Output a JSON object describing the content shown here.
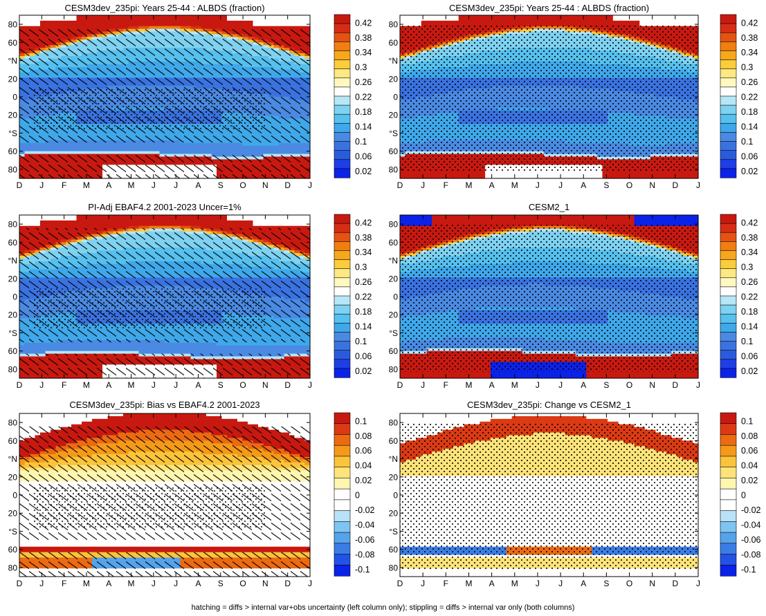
{
  "figure": {
    "footer": "hatching = diffs > internal var+obs uncertainty (left column only); stippling = diffs > internal var only (both columns)"
  },
  "colors": {
    "sequential": [
      "#0b22e8",
      "#1e3ee6",
      "#2a5bdf",
      "#3a72e0",
      "#4a8ae3",
      "#3fa8ea",
      "#56c0ee",
      "#7fd2f1",
      "#b7e6f6",
      "#ffffff",
      "#fff8c0",
      "#fde882",
      "#fbcc3c",
      "#f7a71a",
      "#f07e10",
      "#e55212",
      "#d62d15",
      "#c81910"
    ],
    "diverging": [
      "#0b22e8",
      "#2352e6",
      "#3b7de6",
      "#55a3ea",
      "#7ec4f0",
      "#b8e2f7",
      "#ffffff",
      "#ffffff",
      "#fff7b0",
      "#fde47a",
      "#fbc43a",
      "#f59a18",
      "#ec6a12",
      "#dc3a14",
      "#c81910"
    ]
  },
  "chart_data": [
    {
      "type": "heatmap",
      "title": "CESM3dev_235pi: Years 25-44 : ALBDS (fraction)",
      "x_ticks": [
        "D",
        "J",
        "F",
        "M",
        "A",
        "M",
        "J",
        "J",
        "A",
        "S",
        "O",
        "N",
        "D",
        "J"
      ],
      "y_ticks": [
        "80",
        "60",
        "°N",
        "20",
        "0",
        "20",
        "°S",
        "60",
        "80"
      ],
      "ylim": [
        -90,
        90
      ],
      "colorbar_labels": [
        "0.42",
        "0.38",
        "0.34",
        "0.3",
        "0.26",
        "0.22",
        "0.18",
        "0.14",
        "0.1",
        "0.06",
        "0.02"
      ],
      "colorbar_range": [
        0,
        0.44
      ],
      "overlay": "hatching + stippling",
      "fields": {
        "north_polar_max": 0.44,
        "north_midlat_edge": 0.3,
        "tropical_min": 0.08,
        "subtropical_band": 0.11,
        "south_edge_latitude": -62,
        "south_polar_max": 0.44,
        "missing_polar_night": "white"
      }
    },
    {
      "type": "heatmap",
      "title": "CESM3dev_235pi: Years 25-44 : ALBDS (fraction)",
      "x_ticks": [
        "D",
        "J",
        "F",
        "M",
        "A",
        "M",
        "J",
        "J",
        "A",
        "S",
        "O",
        "N",
        "D",
        "J"
      ],
      "y_ticks": [
        "80",
        "60",
        "°N",
        "20",
        "0",
        "20",
        "°S",
        "60",
        "80"
      ],
      "ylim": [
        -90,
        90
      ],
      "colorbar_labels": [
        "0.42",
        "0.38",
        "0.34",
        "0.3",
        "0.26",
        "0.22",
        "0.18",
        "0.14",
        "0.1",
        "0.06",
        "0.02"
      ],
      "colorbar_range": [
        0,
        0.44
      ],
      "overlay": "stippling",
      "fields": {
        "north_polar_max": 0.44,
        "tropical_min": 0.08,
        "south_edge_latitude": -62,
        "south_polar_max": 0.44
      }
    },
    {
      "type": "heatmap",
      "title": "PI-Adj EBAF4.2 2001-2023 Uncer=1%",
      "x_ticks": [
        "D",
        "J",
        "F",
        "M",
        "A",
        "M",
        "J",
        "J",
        "A",
        "S",
        "O",
        "N",
        "D",
        "J"
      ],
      "y_ticks": [
        "80",
        "60",
        "°N",
        "20",
        "0",
        "20",
        "°S",
        "60",
        "80"
      ],
      "ylim": [
        -90,
        90
      ],
      "colorbar_labels": [
        "0.42",
        "0.38",
        "0.34",
        "0.3",
        "0.26",
        "0.22",
        "0.18",
        "0.14",
        "0.1",
        "0.06",
        "0.02"
      ],
      "colorbar_range": [
        0,
        0.44
      ],
      "overlay": "hatching + stippling",
      "fields": {
        "north_polar_max": 0.44,
        "tropical_min": 0.08,
        "south_edge_latitude": -63,
        "south_polar_max": 0.44
      }
    },
    {
      "type": "heatmap",
      "title": "CESM2_1",
      "x_ticks": [
        "D",
        "J",
        "F",
        "M",
        "A",
        "M",
        "J",
        "J",
        "A",
        "S",
        "O",
        "N",
        "D",
        "J"
      ],
      "y_ticks": [
        "80",
        "60",
        "°N",
        "20",
        "0",
        "20",
        "°S",
        "60",
        "80"
      ],
      "ylim": [
        -90,
        90
      ],
      "colorbar_labels": [
        "0.42",
        "0.38",
        "0.34",
        "0.3",
        "0.26",
        "0.22",
        "0.18",
        "0.14",
        "0.1",
        "0.06",
        "0.02"
      ],
      "colorbar_range": [
        0,
        0.44
      ],
      "overlay": "stippling",
      "fields": {
        "north_polar_max": 0.44,
        "tropical_min": 0.08,
        "south_edge_latitude": -60,
        "south_polar_max": 0.44,
        "polar_night_low_values": 0.0
      }
    },
    {
      "type": "heatmap",
      "title": "CESM3dev_235pi: Bias vs EBAF4.2 2001-2023",
      "x_ticks": [
        "D",
        "J",
        "F",
        "M",
        "A",
        "M",
        "J",
        "J",
        "A",
        "S",
        "O",
        "N",
        "D",
        "J"
      ],
      "y_ticks": [
        "80",
        "60",
        "°N",
        "20",
        "0",
        "20",
        "°S",
        "60",
        "80"
      ],
      "ylim": [
        -90,
        90
      ],
      "colorbar_labels": [
        "0.1",
        "0.08",
        "0.06",
        "0.04",
        "0.02",
        "0",
        "-0.02",
        "-0.04",
        "-0.06",
        "-0.08",
        "-0.1"
      ],
      "colorbar_range": [
        -0.11,
        0.11
      ],
      "overlay": "hatching + stippling",
      "fields": {
        "north_highlat_bias": 0.1,
        "tropical_bias": 0.0,
        "south_edge_bias": 0.1,
        "south_polar_negative": -0.06
      }
    },
    {
      "type": "heatmap",
      "title": "CESM3dev_235pi: Change vs CESM2_1",
      "x_ticks": [
        "D",
        "J",
        "F",
        "M",
        "A",
        "M",
        "J",
        "J",
        "A",
        "S",
        "O",
        "N",
        "D",
        "J"
      ],
      "y_ticks": [
        "80",
        "60",
        "°N",
        "20",
        "0",
        "20",
        "°S",
        "60",
        "80"
      ],
      "ylim": [
        -90,
        90
      ],
      "colorbar_labels": [
        "0.1",
        "0.08",
        "0.06",
        "0.04",
        "0.02",
        "0",
        "-0.02",
        "-0.04",
        "-0.06",
        "-0.08",
        "-0.1"
      ],
      "colorbar_range": [
        -0.11,
        0.11
      ],
      "overlay": "stippling",
      "fields": {
        "north_highlat_change": 0.09,
        "tropical_change": 0.0,
        "south_edge_change": -0.08,
        "south_polar_positive": 0.04
      }
    }
  ]
}
